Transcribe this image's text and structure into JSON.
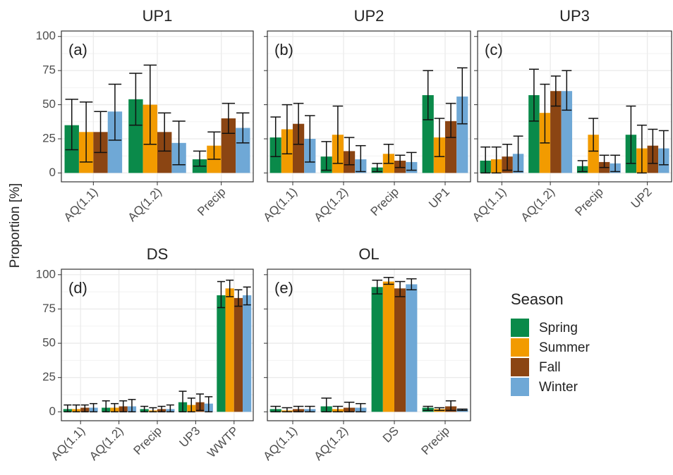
{
  "y_label": "Proportion [%]",
  "legend": {
    "title": "Season"
  },
  "chart_data": [
    {
      "type": "bar",
      "title": "UP1",
      "panel_label": "(a)",
      "show_ytick_labels": true,
      "categories": [
        "AQ(1.1)",
        "AQ(1.2)",
        "Precip"
      ],
      "ylim": [
        -6.5,
        104
      ],
      "yticks": [
        0,
        25,
        50,
        75,
        100
      ],
      "grid": true,
      "series": [
        {
          "name": "Spring",
          "color": "#0a8a4a",
          "values": [
            35,
            54,
            10
          ],
          "ci_low": [
            17,
            35,
            5
          ],
          "ci_high": [
            54,
            73,
            16
          ]
        },
        {
          "name": "Summer",
          "color": "#f29b00",
          "values": [
            30,
            50,
            20
          ],
          "ci_low": [
            8,
            21,
            10
          ],
          "ci_high": [
            52,
            79,
            30
          ]
        },
        {
          "name": "Fall",
          "color": "#8b4513",
          "values": [
            30,
            30,
            40
          ],
          "ci_low": [
            15,
            16,
            29
          ],
          "ci_high": [
            45,
            44,
            51
          ]
        },
        {
          "name": "Winter",
          "color": "#6fa8d6",
          "values": [
            45,
            22,
            33
          ],
          "ci_low": [
            24,
            6,
            22
          ],
          "ci_high": [
            65,
            38,
            44
          ]
        }
      ]
    },
    {
      "type": "bar",
      "title": "UP2",
      "panel_label": "(b)",
      "show_ytick_labels": false,
      "categories": [
        "AQ(1.1)",
        "AQ(1.2)",
        "Precip",
        "UP1"
      ],
      "ylim": [
        -6.5,
        104
      ],
      "yticks": [
        0,
        25,
        50,
        75,
        100
      ],
      "grid": true,
      "series": [
        {
          "name": "Spring",
          "color": "#0a8a4a",
          "values": [
            26,
            12,
            4,
            57
          ],
          "ci_low": [
            12,
            2,
            1,
            39
          ],
          "ci_high": [
            41,
            23,
            7,
            75
          ]
        },
        {
          "name": "Summer",
          "color": "#f29b00",
          "values": [
            32,
            28,
            14,
            26
          ],
          "ci_low": [
            14,
            7,
            7,
            12
          ],
          "ci_high": [
            50,
            49,
            21,
            40
          ]
        },
        {
          "name": "Fall",
          "color": "#8b4513",
          "values": [
            36,
            16,
            9,
            38
          ],
          "ci_low": [
            21,
            6,
            4,
            26
          ],
          "ci_high": [
            51,
            26,
            13,
            51
          ]
        },
        {
          "name": "Winter",
          "color": "#6fa8d6",
          "values": [
            25,
            10,
            8,
            56
          ],
          "ci_low": [
            8,
            1,
            2,
            36
          ],
          "ci_high": [
            42,
            20,
            15,
            77
          ]
        }
      ]
    },
    {
      "type": "bar",
      "title": "UP3",
      "panel_label": "(c)",
      "show_ytick_labels": false,
      "categories": [
        "AQ(1.1)",
        "AQ(1.2)",
        "Precip",
        "UP2"
      ],
      "ylim": [
        -6.5,
        104
      ],
      "yticks": [
        0,
        25,
        50,
        75,
        100
      ],
      "grid": true,
      "series": [
        {
          "name": "Spring",
          "color": "#0a8a4a",
          "values": [
            9,
            57,
            5,
            28
          ],
          "ci_low": [
            0,
            38,
            1,
            7
          ],
          "ci_high": [
            19,
            76,
            9,
            49
          ]
        },
        {
          "name": "Summer",
          "color": "#f29b00",
          "values": [
            10,
            44,
            28,
            18
          ],
          "ci_low": [
            0,
            22,
            16,
            0
          ],
          "ci_high": [
            19,
            65,
            40,
            35
          ]
        },
        {
          "name": "Fall",
          "color": "#8b4513",
          "values": [
            12,
            60,
            8,
            20
          ],
          "ci_low": [
            2,
            49,
            4,
            7
          ],
          "ci_high": [
            21,
            71,
            13,
            32
          ]
        },
        {
          "name": "Winter",
          "color": "#6fa8d6",
          "values": [
            14,
            60,
            7,
            18
          ],
          "ci_low": [
            1,
            46,
            1,
            6
          ],
          "ci_high": [
            27,
            75,
            13,
            31
          ]
        }
      ]
    },
    {
      "type": "bar",
      "title": "DS",
      "panel_label": "(d)",
      "show_ytick_labels": true,
      "categories": [
        "AQ(1.1)",
        "AQ(1.2)",
        "Precip",
        "UP3",
        "WWTP"
      ],
      "ylim": [
        -6.5,
        104
      ],
      "yticks": [
        0,
        25,
        50,
        75,
        100
      ],
      "grid": true,
      "series": [
        {
          "name": "Spring",
          "color": "#0a8a4a",
          "values": [
            2,
            3,
            2,
            7,
            85
          ],
          "ci_low": [
            0,
            0,
            0,
            0,
            76
          ],
          "ci_high": [
            5,
            8,
            4,
            15,
            95
          ]
        },
        {
          "name": "Summer",
          "color": "#f29b00",
          "values": [
            2,
            3,
            1,
            5,
            90
          ],
          "ci_low": [
            0,
            0,
            0,
            0,
            84
          ],
          "ci_high": [
            5,
            6,
            3,
            10,
            96
          ]
        },
        {
          "name": "Fall",
          "color": "#8b4513",
          "values": [
            3,
            4,
            2,
            7,
            83
          ],
          "ci_low": [
            0,
            0,
            0,
            1,
            77
          ],
          "ci_high": [
            5,
            8,
            4,
            13,
            89
          ]
        },
        {
          "name": "Winter",
          "color": "#6fa8d6",
          "values": [
            3,
            4,
            2,
            6,
            85
          ],
          "ci_low": [
            0,
            0,
            0,
            0,
            78
          ],
          "ci_high": [
            6,
            9,
            5,
            11,
            91
          ]
        }
      ]
    },
    {
      "type": "bar",
      "title": "OL",
      "panel_label": "(e)",
      "show_ytick_labels": false,
      "categories": [
        "AQ(1.1)",
        "AQ(1.2)",
        "DS",
        "Precip"
      ],
      "ylim": [
        -6.5,
        104
      ],
      "yticks": [
        0,
        25,
        50,
        75,
        100
      ],
      "grid": true,
      "series": [
        {
          "name": "Spring",
          "color": "#0a8a4a",
          "values": [
            2,
            4,
            91,
            3
          ],
          "ci_low": [
            0,
            0,
            86,
            1
          ],
          "ci_high": [
            4,
            10,
            96,
            4
          ]
        },
        {
          "name": "Summer",
          "color": "#f29b00",
          "values": [
            1,
            2,
            95,
            2
          ],
          "ci_low": [
            0,
            0,
            93,
            1
          ],
          "ci_high": [
            3,
            4,
            98,
            3
          ]
        },
        {
          "name": "Fall",
          "color": "#8b4513",
          "values": [
            2,
            3,
            90,
            4
          ],
          "ci_low": [
            0,
            0,
            84,
            1
          ],
          "ci_high": [
            4,
            7,
            95,
            8
          ]
        },
        {
          "name": "Winter",
          "color": "#6fa8d6",
          "values": [
            2,
            3,
            93,
            2
          ],
          "ci_low": [
            0,
            0,
            89,
            1
          ],
          "ci_high": [
            4,
            6,
            97,
            2
          ]
        }
      ]
    }
  ]
}
